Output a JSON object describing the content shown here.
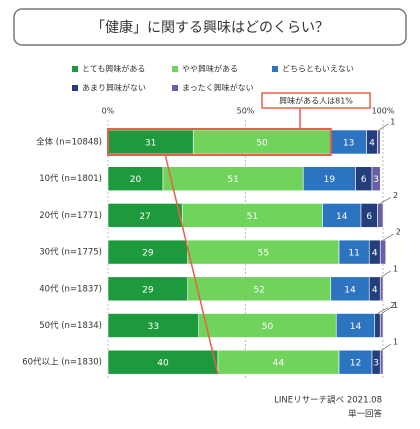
{
  "chart_data": {
    "type": "stacked-bar-horizontal",
    "title": "「健康」に関する興味はどのくらい？",
    "categories": [
      "全体 (n=10848)",
      "10代 (n=1801)",
      "20代 (n=1771)",
      "30代 (n=1775)",
      "40代 (n=1837)",
      "50代 (n=1834)",
      "60代以上 (n=1830)"
    ],
    "series": [
      {
        "name": "とても興味がある",
        "color": "#1e9a3e",
        "values": [
          31,
          20,
          27,
          29,
          29,
          33,
          40
        ]
      },
      {
        "name": "やや興味がある",
        "color": "#6fd35c",
        "values": [
          50,
          51,
          51,
          55,
          52,
          50,
          44
        ]
      },
      {
        "name": "どちらともいえない",
        "color": "#2c74c0",
        "values": [
          13,
          19,
          14,
          11,
          14,
          14,
          12
        ]
      },
      {
        "name": "あまり興味がない",
        "color": "#223f7c",
        "values": [
          4,
          6,
          6,
          4,
          4,
          2,
          3
        ]
      },
      {
        "name": "まったく興味がない",
        "color": "#6a5ea8",
        "values": [
          1,
          3,
          2,
          2,
          1,
          1,
          1
        ]
      }
    ],
    "xlim": [
      0,
      100
    ],
    "xticks": [
      {
        "value": 0,
        "label": "0%"
      },
      {
        "value": 50,
        "label": "50%"
      },
      {
        "value": 100,
        "label": "100%"
      }
    ],
    "grid": true,
    "annotation": "興味がある人は81%",
    "source": "LINEリサーチ調べ 2021.08",
    "note": "単一回答"
  }
}
